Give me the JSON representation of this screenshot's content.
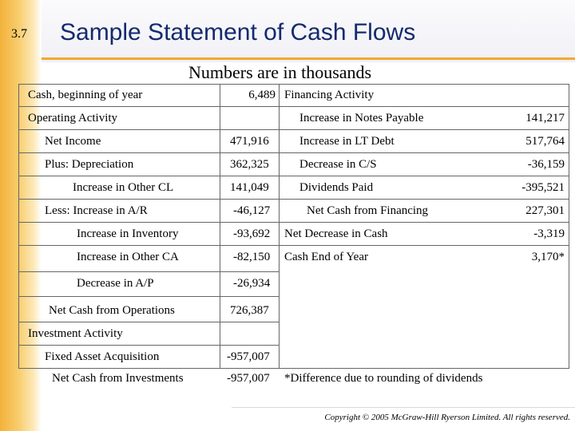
{
  "slide_number": "3.7",
  "title": "Sample Statement of Cash Flows",
  "subtitle": "Numbers are in thousands",
  "left": {
    "cash_beginning": {
      "label": "Cash, beginning of year",
      "value": "6,489"
    },
    "operating_header": "Operating Activity",
    "operating_rows": [
      {
        "label": "Net Income",
        "value": "471,916"
      },
      {
        "label": "Plus: Depreciation",
        "value": "362,325"
      },
      {
        "label": "Increase in Other CL",
        "value": "141,049"
      },
      {
        "label": "Less: Increase in A/R",
        "value": "-46,127"
      },
      {
        "label": "Increase in Inventory",
        "value": "-93,692"
      },
      {
        "label": "Increase in Other CA",
        "value": "-82,150"
      },
      {
        "label": "Decrease in A/P",
        "value": "-26,934"
      },
      {
        "label": "Net Cash from Operations",
        "value": "726,387"
      }
    ],
    "investment_header": "Investment Activity",
    "investment_rows": [
      {
        "label": "Fixed Asset Acquisition",
        "value": "-957,007"
      },
      {
        "label": "Net Cash from Investments",
        "value": "-957,007"
      }
    ]
  },
  "right": {
    "financing_header": "Financing Activity",
    "financing_rows": [
      {
        "label": "Increase in Notes Payable",
        "value": "141,217"
      },
      {
        "label": "Increase in LT Debt",
        "value": "517,764"
      },
      {
        "label": "Decrease in C/S",
        "value": "-36,159"
      },
      {
        "label": "Dividends Paid",
        "value": "-395,521"
      },
      {
        "label": "Net Cash from Financing",
        "value": "227,301"
      },
      {
        "label": "Net Decrease in Cash",
        "value": "-3,319"
      },
      {
        "label": "Cash End of Year",
        "value": "3,170*"
      }
    ],
    "footnote": "*Difference due to rounding of dividends"
  },
  "copyright": "Copyright © 2005 McGraw-Hill Ryerson Limited. All rights reserved.",
  "colors": {
    "title": "#142a6e",
    "accent_orange": "#f3a830",
    "grid": "#666666"
  }
}
